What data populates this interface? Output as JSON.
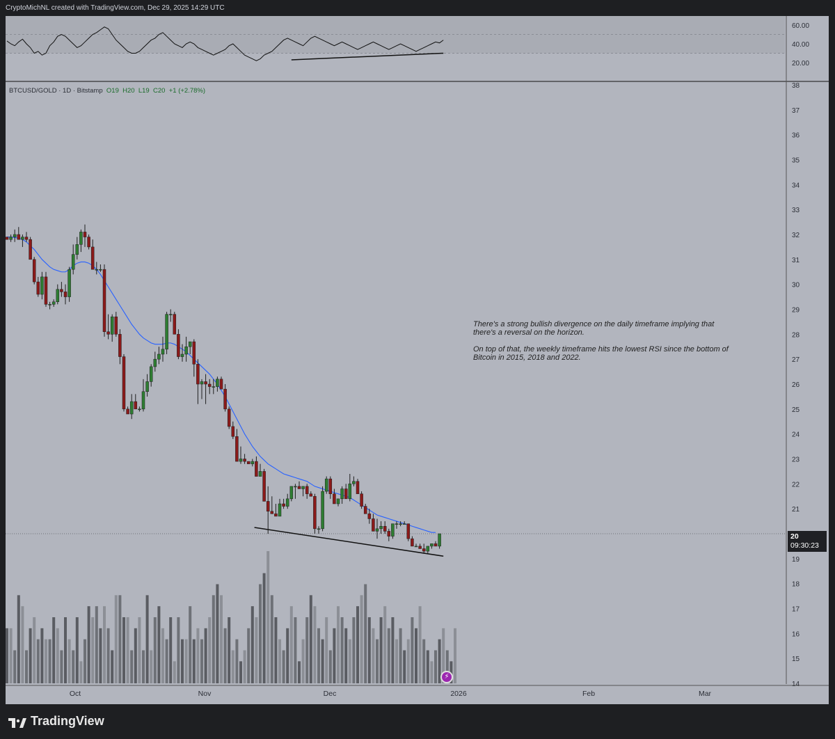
{
  "header": {
    "text": "CryptoMichNL created with TradingView.com, Dec 29, 2025 14:29 UTC"
  },
  "legend": {
    "symbol": "BTCUSD/GOLD · 1D · Bitstamp",
    "o": "O19",
    "h": "H20",
    "l": "L19",
    "c": "C20",
    "change": "+1 (+2.78%)"
  },
  "annotation": {
    "paragraph1": "There's a strong bullish divergence on the daily timeframe implying that there's a reversal on the horizon.",
    "paragraph2": "On top of that, the weekly timeframe hits the lowest RSI since the bottom of Bitcoin in 2015, 2018 and 2022."
  },
  "price_label": {
    "price": "20",
    "countdown": "09:30:23"
  },
  "footer": {
    "brand": "TradingView"
  },
  "colors": {
    "background": "#b2b5be",
    "up": "#2e7d32",
    "down": "#8b1a1a",
    "ma": "#2962ff",
    "rsi": "#111111",
    "trendline": "#111111"
  },
  "chart_data": {
    "type": "candlestick",
    "timeframe": "1D",
    "x_labels": [
      "Oct",
      "Nov",
      "Dec",
      "2026",
      "Feb",
      "Mar"
    ],
    "price_axis": {
      "min": 14,
      "max": 38,
      "ticks": [
        14,
        15,
        16,
        17,
        18,
        19,
        20,
        21,
        22,
        23,
        24,
        25,
        26,
        27,
        28,
        29,
        30,
        31,
        32,
        33,
        34,
        35,
        36,
        37,
        38
      ]
    },
    "rsi_axis": {
      "ticks": [
        20,
        40,
        60
      ],
      "bands": [
        30,
        70
      ]
    },
    "candles": [
      [
        31.9,
        31.9,
        31.8
      ],
      [
        31.8,
        32.0,
        31.7
      ],
      [
        31.9,
        32.2,
        31.7
      ],
      [
        32.0,
        32.3,
        31.8
      ],
      [
        31.8,
        32.0,
        31.5
      ],
      [
        31.9,
        32.1,
        31.7
      ],
      [
        31.8,
        31.9,
        31.3
      ],
      [
        31.0,
        31.1,
        30.0
      ],
      [
        30.1,
        30.3,
        29.5
      ],
      [
        29.6,
        30.5,
        29.4
      ],
      [
        30.3,
        30.5,
        29.1
      ],
      [
        29.2,
        29.3,
        29.0
      ],
      [
        29.2,
        29.4,
        29.1
      ],
      [
        29.3,
        30.0,
        29.2
      ],
      [
        29.8,
        30.1,
        29.5
      ],
      [
        29.7,
        30.0,
        29.2
      ],
      [
        29.5,
        30.7,
        29.3
      ],
      [
        30.6,
        31.6,
        30.4
      ],
      [
        31.2,
        31.9,
        31.0
      ],
      [
        31.6,
        32.2,
        31.3
      ],
      [
        32.1,
        32.4,
        31.5
      ],
      [
        31.9,
        32.0,
        31.4
      ],
      [
        31.5,
        31.8,
        30.6
      ],
      [
        30.6,
        30.9,
        30.4
      ],
      [
        30.6,
        30.8,
        30.5
      ],
      [
        30.6,
        30.8,
        27.9
      ],
      [
        28.1,
        28.8,
        27.8
      ],
      [
        28.0,
        28.8,
        27.7
      ],
      [
        28.7,
        28.9,
        27.9
      ],
      [
        28.0,
        28.2,
        26.8
      ],
      [
        27.1,
        27.2,
        24.9
      ],
      [
        25.0,
        25.1,
        24.8
      ],
      [
        24.8,
        25.6,
        24.6
      ],
      [
        25.3,
        25.6,
        25.0
      ],
      [
        25.0,
        25.1,
        24.9
      ],
      [
        25.0,
        26.2,
        24.9
      ],
      [
        25.7,
        26.4,
        25.5
      ],
      [
        26.1,
        26.8,
        25.9
      ],
      [
        26.7,
        27.3,
        26.5
      ],
      [
        27.0,
        27.5,
        26.8
      ],
      [
        27.2,
        27.9,
        26.9
      ],
      [
        27.4,
        28.9,
        27.2
      ],
      [
        28.8,
        29.0,
        28.5
      ],
      [
        28.8,
        28.9,
        28.0
      ],
      [
        28.0,
        28.2,
        27.0
      ],
      [
        27.1,
        27.6,
        26.9
      ],
      [
        27.2,
        27.9,
        26.9
      ],
      [
        27.5,
        27.7,
        27.2
      ],
      [
        27.7,
        27.8,
        26.3
      ],
      [
        26.8,
        27.0,
        25.2
      ],
      [
        26.0,
        26.2,
        25.4
      ],
      [
        26.1,
        26.4,
        25.2
      ],
      [
        26.0,
        26.2,
        25.6
      ],
      [
        25.9,
        26.2,
        25.6
      ],
      [
        25.9,
        26.3,
        25.7
      ],
      [
        26.2,
        26.3,
        25.8
      ],
      [
        25.8,
        26.0,
        24.9
      ],
      [
        25.0,
        25.1,
        24.2
      ],
      [
        24.3,
        24.5,
        23.8
      ],
      [
        23.9,
        24.2,
        23.1
      ],
      [
        22.9,
        23.5,
        22.8
      ],
      [
        23.0,
        23.2,
        22.8
      ],
      [
        22.9,
        22.9,
        22.8
      ],
      [
        22.8,
        23.0,
        22.7
      ],
      [
        22.9,
        23.1,
        22.3
      ],
      [
        22.3,
        22.8,
        22.4
      ],
      [
        22.5,
        22.6,
        21.7
      ],
      [
        21.3,
        21.9,
        20.0
      ],
      [
        20.9,
        21.5,
        20.8
      ],
      [
        20.8,
        21.2,
        20.7
      ],
      [
        20.7,
        21.4,
        20.8
      ],
      [
        21.2,
        21.4,
        21.0
      ],
      [
        21.1,
        21.6,
        21.0
      ],
      [
        21.4,
        21.8,
        21.3
      ],
      [
        21.9,
        22.0,
        21.4
      ],
      [
        21.9,
        22.1,
        21.9
      ],
      [
        21.8,
        21.9,
        21.5
      ],
      [
        21.9,
        22.0,
        21.4
      ],
      [
        21.6,
        21.7,
        21.5
      ],
      [
        21.5,
        21.6,
        20.0
      ],
      [
        20.2,
        20.3,
        20.0
      ],
      [
        20.2,
        21.9,
        20.1
      ],
      [
        21.7,
        22.3,
        21.6
      ],
      [
        22.2,
        22.3,
        21.4
      ],
      [
        21.6,
        21.8,
        21.2
      ],
      [
        21.2,
        21.4,
        21.1
      ],
      [
        21.4,
        21.9,
        21.2
      ],
      [
        21.8,
        22.0,
        21.5
      ],
      [
        21.4,
        22.4,
        21.3
      ],
      [
        22.0,
        22.3,
        21.9
      ],
      [
        22.1,
        22.2,
        21.7
      ],
      [
        21.6,
        21.7,
        21.0
      ],
      [
        21.1,
        21.2,
        20.8
      ],
      [
        20.8,
        21.0,
        20.4
      ],
      [
        20.6,
        20.8,
        20.1
      ],
      [
        20.1,
        20.6,
        19.8
      ],
      [
        20.2,
        20.5,
        20.0
      ],
      [
        20.3,
        20.5,
        20.0
      ],
      [
        20.1,
        20.2,
        19.7
      ],
      [
        19.9,
        20.3,
        19.8
      ],
      [
        20.4,
        20.5,
        20.2
      ],
      [
        20.4,
        20.5,
        20.3
      ],
      [
        20.4,
        20.5,
        20.4
      ],
      [
        20.4,
        20.4,
        19.7
      ],
      [
        19.8,
        19.9,
        19.5
      ],
      [
        19.5,
        19.6,
        19.5
      ],
      [
        19.5,
        19.6,
        19.4
      ],
      [
        19.4,
        19.6,
        19.2
      ],
      [
        19.3,
        19.5,
        19.2
      ],
      [
        19.5,
        19.6,
        19.4
      ],
      [
        19.6,
        19.7,
        19.5
      ],
      [
        19.5,
        20.0,
        19.4
      ]
    ],
    "ma_values": [
      31.9,
      31.9,
      31.88,
      31.85,
      31.8,
      31.7,
      31.55,
      31.4,
      31.2,
      31.0,
      30.85,
      30.7,
      30.6,
      30.55,
      30.5,
      30.5,
      30.6,
      30.75,
      30.85,
      30.9,
      30.9,
      30.85,
      30.75,
      30.6,
      30.4,
      30.15,
      29.9,
      29.65,
      29.4,
      29.15,
      28.9,
      28.65,
      28.4,
      28.2,
      28.0,
      27.85,
      27.75,
      27.65,
      27.6,
      27.6,
      27.6,
      27.65,
      27.65,
      27.6,
      27.5,
      27.4,
      27.3,
      27.15,
      27.0,
      26.85,
      26.7,
      26.55,
      26.4,
      26.2,
      26.0,
      25.75,
      25.5,
      25.2,
      24.9,
      24.6,
      24.3,
      24.0,
      23.75,
      23.5,
      23.3,
      23.1,
      22.95,
      22.8,
      22.7,
      22.6,
      22.5,
      22.4,
      22.35,
      22.3,
      22.25,
      22.2,
      22.15,
      22.1,
      22.0,
      21.9,
      21.85,
      21.8,
      21.75,
      21.7,
      21.65,
      21.6,
      21.55,
      21.5,
      21.45,
      21.35,
      21.25,
      21.15,
      21.05,
      20.95,
      20.85,
      20.75,
      20.7,
      20.65,
      20.6,
      20.55,
      20.5,
      20.45,
      20.4,
      20.35,
      20.3,
      20.25,
      20.2,
      20.15,
      20.1,
      20.05,
      20.05
    ],
    "volume": [
      5,
      5,
      3,
      8,
      7,
      3,
      5,
      6,
      4,
      5,
      4,
      4,
      6,
      5,
      3,
      6,
      4,
      3,
      6,
      2,
      4,
      7,
      6,
      7,
      5,
      7,
      5,
      3,
      8,
      8,
      6,
      6,
      3,
      5,
      6,
      3,
      8,
      3,
      6,
      7,
      5,
      4,
      6,
      2,
      6,
      4,
      4,
      7,
      4,
      5,
      4,
      5,
      6,
      8,
      9,
      8,
      5,
      6,
      3,
      4,
      2,
      3,
      5,
      7,
      6,
      9,
      10,
      12,
      8,
      6,
      4,
      3,
      5,
      7,
      6,
      2,
      4,
      6,
      8,
      7,
      5,
      4,
      6,
      3,
      5,
      7,
      6,
      5,
      4,
      6,
      7,
      8,
      9,
      6,
      5,
      4,
      6,
      7,
      5,
      6,
      4,
      5,
      3,
      4,
      6,
      5,
      7,
      4,
      3,
      2,
      3,
      4,
      5,
      3,
      2,
      5
    ],
    "rsi": [
      43,
      40,
      38,
      42,
      45,
      40,
      36,
      30,
      32,
      28,
      30,
      38,
      42,
      48,
      50,
      48,
      44,
      40,
      36,
      38,
      42,
      46,
      50,
      52,
      55,
      58,
      56,
      50,
      44,
      40,
      36,
      32,
      30,
      30,
      32,
      36,
      40,
      44,
      46,
      50,
      52,
      48,
      44,
      40,
      38,
      36,
      40,
      42,
      40,
      36,
      34,
      32,
      30,
      28,
      30,
      32,
      34,
      38,
      40,
      36,
      32,
      28,
      26,
      24,
      22,
      24,
      28,
      30,
      32,
      36,
      40,
      44,
      46,
      44,
      42,
      40,
      38,
      42,
      46,
      48,
      46,
      44,
      42,
      40,
      38,
      40,
      42,
      40,
      38,
      36,
      34,
      36,
      38,
      40,
      42,
      40,
      38,
      36,
      34,
      36,
      38,
      40,
      38,
      36,
      34,
      32,
      34,
      36,
      38,
      40,
      42,
      41,
      44
    ]
  }
}
